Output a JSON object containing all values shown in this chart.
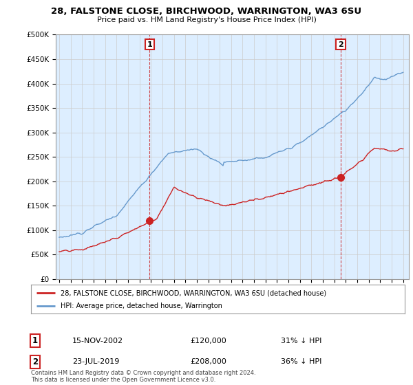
{
  "title_line1": "28, FALSTONE CLOSE, BIRCHWOOD, WARRINGTON, WA3 6SU",
  "title_line2": "Price paid vs. HM Land Registry's House Price Index (HPI)",
  "ylim": [
    0,
    500000
  ],
  "yticks": [
    0,
    50000,
    100000,
    150000,
    200000,
    250000,
    300000,
    350000,
    400000,
    450000,
    500000
  ],
  "ytick_labels": [
    "£0",
    "£50K",
    "£100K",
    "£150K",
    "£200K",
    "£250K",
    "£300K",
    "£350K",
    "£400K",
    "£450K",
    "£500K"
  ],
  "xlim_start": 1994.7,
  "xlim_end": 2025.5,
  "xticks": [
    1995,
    1996,
    1997,
    1998,
    1999,
    2000,
    2001,
    2002,
    2003,
    2004,
    2005,
    2006,
    2007,
    2008,
    2009,
    2010,
    2011,
    2012,
    2013,
    2014,
    2015,
    2016,
    2017,
    2018,
    2019,
    2020,
    2021,
    2022,
    2023,
    2024,
    2025
  ],
  "hpi_color": "#6699cc",
  "hpi_fill_color": "#ddeeff",
  "price_color": "#cc2222",
  "vline_color": "#cc2222",
  "point1_x": 2002.88,
  "point1_y": 120000,
  "point2_x": 2019.55,
  "point2_y": 208000,
  "legend_label_red": "28, FALSTONE CLOSE, BIRCHWOOD, WARRINGTON, WA3 6SU (detached house)",
  "legend_label_blue": "HPI: Average price, detached house, Warrington",
  "table_row1": [
    "1",
    "15-NOV-2002",
    "£120,000",
    "31% ↓ HPI"
  ],
  "table_row2": [
    "2",
    "23-JUL-2019",
    "£208,000",
    "36% ↓ HPI"
  ],
  "footnote": "Contains HM Land Registry data © Crown copyright and database right 2024.\nThis data is licensed under the Open Government Licence v3.0.",
  "background_color": "#ffffff",
  "grid_color": "#cccccc"
}
